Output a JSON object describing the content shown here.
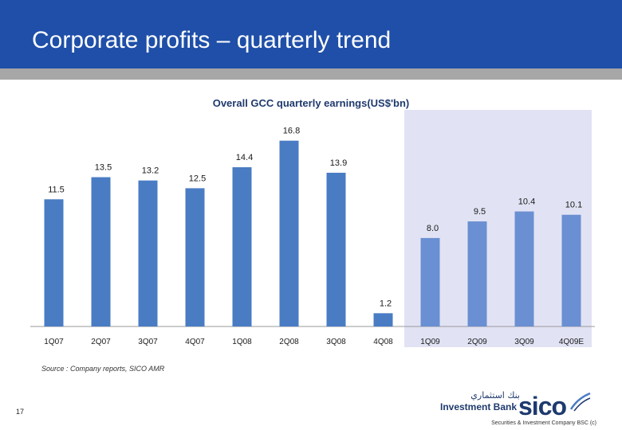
{
  "header": {
    "title": "Corporate profits – quarterly trend"
  },
  "chart_data": {
    "type": "bar",
    "title": "Overall GCC quarterly earnings(US$'bn)",
    "xlabel": "",
    "ylabel": "",
    "ylim": [
      0,
      18
    ],
    "grid": false,
    "legend": "none",
    "categories": [
      "1Q07",
      "2Q07",
      "3Q07",
      "4Q07",
      "1Q08",
      "2Q08",
      "3Q08",
      "4Q08",
      "1Q09",
      "2Q09",
      "3Q09",
      "4Q09E"
    ],
    "values": [
      11.5,
      13.5,
      13.2,
      12.5,
      14.4,
      16.8,
      13.9,
      1.2,
      8.0,
      9.5,
      10.4,
      10.1
    ],
    "labels": [
      "11.5",
      "13.5",
      "13.2",
      "12.5",
      "14.4",
      "16.8",
      "13.9",
      "1.2",
      "8.0",
      "9.5",
      "10.4",
      "10.1"
    ],
    "highlight_from_index": 8,
    "colors": {
      "bar": "#4a7cc4",
      "bar_highlight": "#6a8fd2",
      "highlight_bg": "#e1e3f4",
      "axis": "#9a9a9a",
      "text": "#1a1a1a",
      "title": "#1f3a6e"
    }
  },
  "source": "Source : Company reports, SICO AMR",
  "page_number": "17",
  "logo": {
    "arabic": "بنك استثماري",
    "bank": "Investment Bank",
    "name": "sico",
    "caption": "Securities & Investment Company BSC (c)"
  }
}
